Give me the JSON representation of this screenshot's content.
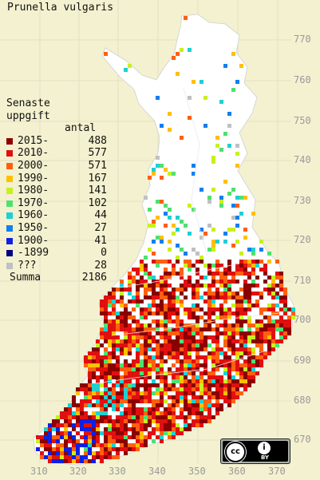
{
  "title": "Prunella vulgaris",
  "legend": {
    "heading_line1": "Senaste",
    "heading_line2": "uppgift",
    "count_header": "antal",
    "items": [
      {
        "label": "2015-",
        "count": "488",
        "color": "#8b0000"
      },
      {
        "label": "2010-",
        "count": "577",
        "color": "#e01010"
      },
      {
        "label": "2000-",
        "count": "571",
        "color": "#ff6010"
      },
      {
        "label": "1990-",
        "count": "167",
        "color": "#ffc000"
      },
      {
        "label": "1980-",
        "count": "141",
        "color": "#c8f020"
      },
      {
        "label": "1970-",
        "count": "102",
        "color": "#50e070"
      },
      {
        "label": "1960-",
        "count": "44",
        "color": "#20d0d0"
      },
      {
        "label": "1950-",
        "count": "27",
        "color": "#1080f0"
      },
      {
        "label": "1900-",
        "count": "41",
        "color": "#1020e0"
      },
      {
        "label": "-1899",
        "count": "0",
        "color": "#000080"
      },
      {
        "label": "???",
        "count": "28",
        "color": "#c0c0c0"
      }
    ],
    "total_label": "Summa",
    "total_count": "2186"
  },
  "axes": {
    "y_ticks": [
      "770",
      "760",
      "750",
      "740",
      "730",
      "720",
      "710",
      "700",
      "690",
      "680",
      "670"
    ],
    "x_ticks": [
      "310",
      "320",
      "330",
      "340",
      "350",
      "360",
      "370"
    ]
  },
  "license": {
    "cc_symbol": "cc",
    "by_symbol": "i",
    "by_text": "BY"
  },
  "colors": {
    "background": "#f3f1cf",
    "land": "#ffffff",
    "grid": "#dcdcdc"
  }
}
